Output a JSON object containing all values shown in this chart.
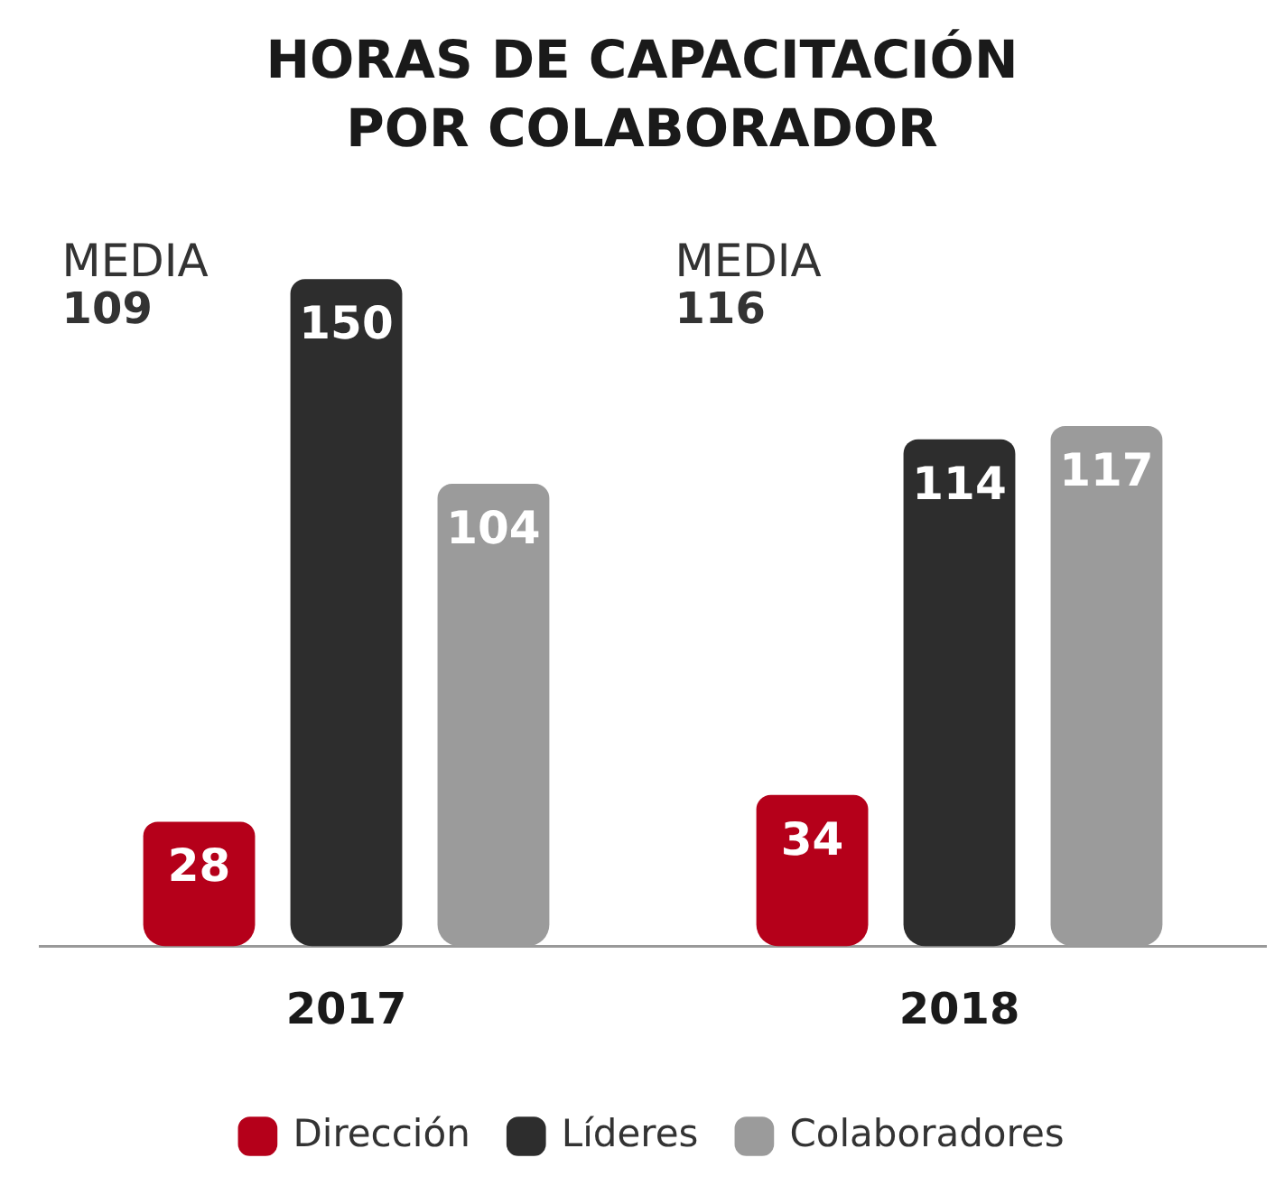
{
  "chart_data": {
    "type": "bar",
    "title": "HORAS DE CAPACITACIÓN POR COLABORADOR",
    "categories": [
      "2017",
      "2018"
    ],
    "series": [
      {
        "name": "Dirección",
        "color": "#b5001a",
        "values": [
          28,
          34
        ]
      },
      {
        "name": "Líderes",
        "color": "#2d2d2d",
        "values": [
          150,
          114
        ]
      },
      {
        "name": "Colaboradores",
        "color": "#9b9b9b",
        "values": [
          104,
          117
        ]
      }
    ],
    "data_labels": true,
    "legend": "bottom",
    "grid": false,
    "tick_labels": "x",
    "annotations": [
      "MEDIA 109",
      "MEDIA 116"
    ]
  }
}
